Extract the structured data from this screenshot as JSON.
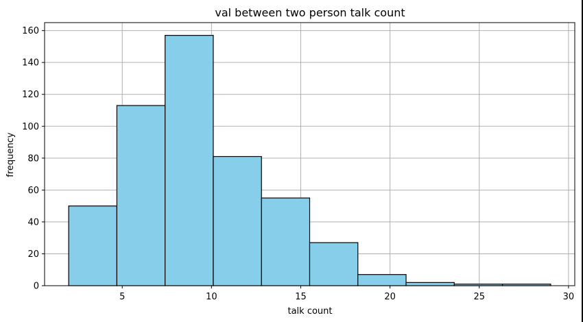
{
  "chart_data": {
    "type": "bar",
    "title": "val between two person talk count",
    "xlabel": "talk count",
    "ylabel": "frequency",
    "bins": [
      {
        "start": 2.0,
        "end": 4.7,
        "count": 50
      },
      {
        "start": 4.7,
        "end": 7.4,
        "count": 113
      },
      {
        "start": 7.4,
        "end": 10.1,
        "count": 157
      },
      {
        "start": 10.1,
        "end": 12.8,
        "count": 81
      },
      {
        "start": 12.8,
        "end": 15.5,
        "count": 55
      },
      {
        "start": 15.5,
        "end": 18.2,
        "count": 27
      },
      {
        "start": 18.2,
        "end": 20.9,
        "count": 7
      },
      {
        "start": 20.9,
        "end": 23.6,
        "count": 2
      },
      {
        "start": 23.6,
        "end": 26.3,
        "count": 1
      },
      {
        "start": 26.3,
        "end": 29.0,
        "count": 1
      }
    ],
    "xlim": [
      0.65,
      30.35
    ],
    "ylim": [
      0,
      165
    ],
    "x_ticks": [
      5,
      10,
      15,
      20,
      25,
      30
    ],
    "y_ticks": [
      0,
      20,
      40,
      60,
      80,
      100,
      120,
      140,
      160
    ],
    "grid": true,
    "bar_color": "#87ceeb",
    "edge_color": "#000000",
    "grid_color": "#b0b0b0"
  }
}
